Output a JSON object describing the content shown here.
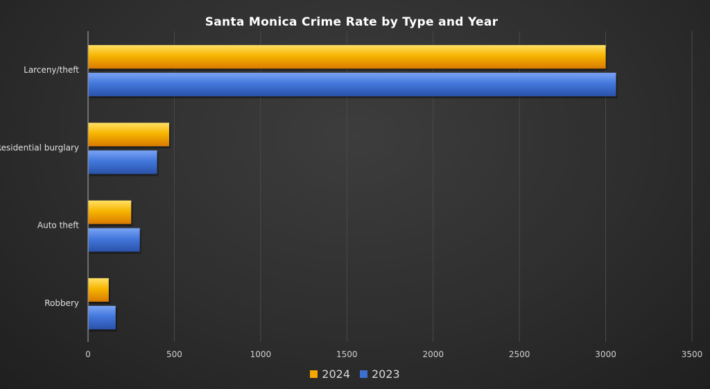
{
  "chart_data": {
    "type": "bar",
    "orientation": "horizontal",
    "title": "Santa Monica Crime Rate by Type and Year",
    "categories": [
      "Larceny/theft",
      "Residential burglary",
      "Auto theft",
      "Robbery"
    ],
    "series": [
      {
        "name": "2024",
        "color": "#f5a800",
        "values": [
          3000,
          470,
          250,
          120
        ]
      },
      {
        "name": "2023",
        "color": "#3d6fd1",
        "values": [
          3060,
          400,
          300,
          160
        ]
      }
    ],
    "xlim": [
      0,
      3500
    ],
    "xticks": [
      0,
      500,
      1000,
      1500,
      2000,
      2500,
      3000,
      3500
    ],
    "grid": true,
    "legend_position": "bottom"
  }
}
